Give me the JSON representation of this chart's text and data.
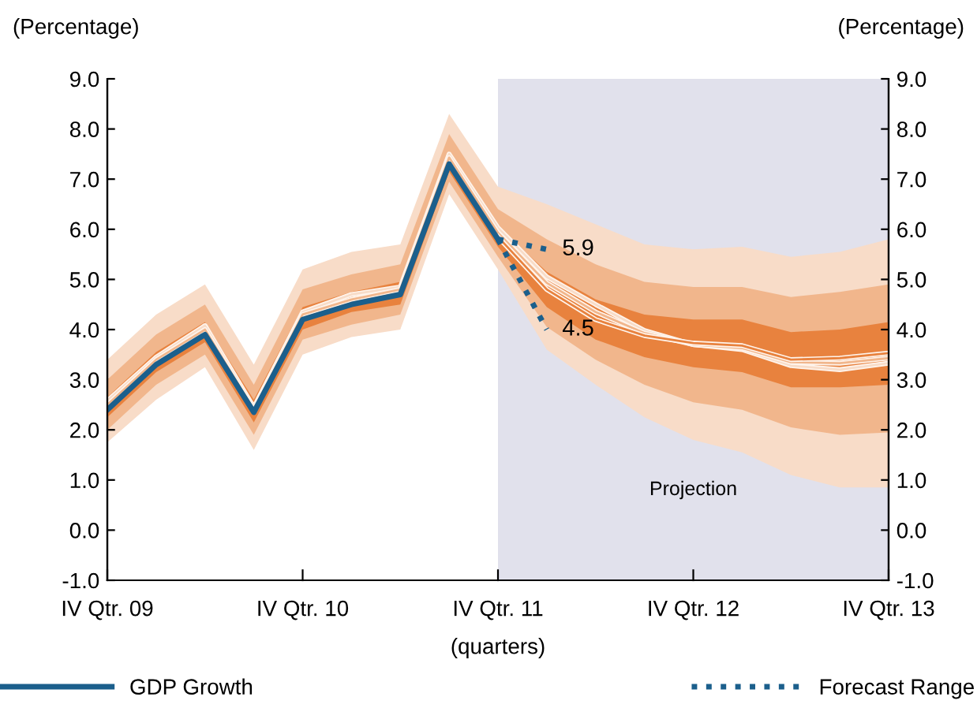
{
  "chart_data": {
    "type": "line",
    "xlabel": "(quarters)",
    "ylabel": "(Percentage)",
    "y2label": "(Percentage)",
    "categories": [
      "IV Qtr. 09",
      null,
      null,
      null,
      "IV Qtr. 10",
      null,
      null,
      null,
      "IV Qtr. 11",
      null,
      null,
      null,
      "IV Qtr. 12",
      null,
      null,
      null,
      "IV Qtr. 13"
    ],
    "ylim": [
      -1,
      9
    ],
    "y2lim": [
      -1,
      9
    ],
    "yticks": [
      {
        "value": -1,
        "label": "-1.0"
      },
      {
        "value": 0,
        "label": "0.0"
      },
      {
        "value": 1,
        "label": "1.0"
      },
      {
        "value": 2,
        "label": "2.0"
      },
      {
        "value": 3,
        "label": "3.0"
      },
      {
        "value": 4,
        "label": "4.0"
      },
      {
        "value": 5,
        "label": "5.0"
      },
      {
        "value": 6,
        "label": "6.0"
      },
      {
        "value": 7,
        "label": "7.0"
      },
      {
        "value": 8,
        "label": "8.0"
      },
      {
        "value": 9,
        "label": "9.0"
      }
    ],
    "y2ticks": [
      {
        "value": -1,
        "label": "-1.0"
      },
      {
        "value": 0,
        "label": "0.0"
      },
      {
        "value": 1,
        "label": "1.0"
      },
      {
        "value": 2,
        "label": "2.0"
      },
      {
        "value": 3,
        "label": "3.0"
      },
      {
        "value": 4,
        "label": "4.0"
      },
      {
        "value": 5,
        "label": "5.0"
      },
      {
        "value": 6,
        "label": "6.0"
      },
      {
        "value": 7,
        "label": "7.0"
      },
      {
        "value": 8,
        "label": "8.0"
      },
      {
        "value": 9,
        "label": "9.0"
      }
    ],
    "grid": false,
    "legend": "bottom",
    "bands": [
      {
        "axis": "x",
        "from": "IV Qtr. 11",
        "to": "IV Qtr. 13",
        "label": "Projection",
        "color": "#e1e1ec"
      }
    ],
    "series": [
      {
        "color": "#f8dcc8",
        "values": [
          2.58,
          3.45,
          4.08,
          2.45,
          4.35,
          4.7,
          4.85,
          7.5,
          6.03,
          5.05,
          4.5,
          3.98,
          3.7,
          3.6,
          3.28,
          3.2,
          3.33
        ],
        "lower": [
          1.75,
          2.6,
          3.25,
          1.6,
          3.5,
          3.85,
          4.0,
          6.7,
          5.2,
          3.6,
          2.9,
          2.25,
          1.8,
          1.55,
          1.1,
          0.85,
          0.85
        ],
        "upper": [
          3.4,
          4.3,
          4.9,
          3.3,
          5.2,
          5.55,
          5.7,
          8.3,
          6.85,
          6.5,
          6.1,
          5.7,
          5.6,
          5.65,
          5.45,
          5.55,
          5.8
        ]
      },
      {
        "color": "#f1b68c",
        "values": [
          2.5,
          3.4,
          4.0,
          2.4,
          4.3,
          4.6,
          4.8,
          7.43,
          5.93,
          4.93,
          4.35,
          3.93,
          3.7,
          3.63,
          3.35,
          3.33,
          3.43
        ],
        "lower": [
          2.0,
          2.9,
          3.5,
          1.9,
          3.8,
          4.1,
          4.3,
          6.95,
          5.45,
          4.05,
          3.4,
          2.9,
          2.55,
          2.4,
          2.05,
          1.9,
          1.95
        ],
        "upper": [
          3.0,
          3.9,
          4.5,
          2.9,
          4.8,
          5.1,
          5.3,
          7.9,
          6.4,
          5.8,
          5.3,
          4.95,
          4.85,
          4.85,
          4.65,
          4.75,
          4.9
        ]
      },
      {
        "color": "#e8823e",
        "values": [
          null,
          null,
          null,
          null,
          null,
          null,
          null,
          null,
          5.85,
          4.8,
          4.2,
          3.88,
          3.73,
          3.68,
          3.4,
          3.43,
          3.53
        ],
        "lower": [
          2.25,
          3.15,
          3.75,
          2.15,
          4.0,
          4.35,
          4.5,
          7.15,
          5.65,
          4.45,
          3.8,
          3.45,
          3.25,
          3.15,
          2.85,
          2.85,
          2.9
        ],
        "upper": [
          2.65,
          3.55,
          4.15,
          2.6,
          4.45,
          4.75,
          4.95,
          7.55,
          6.05,
          5.15,
          4.6,
          4.3,
          4.2,
          4.2,
          3.95,
          4.0,
          4.15
        ]
      },
      {
        "name": "GDP Growth",
        "color": "#1b5f8c",
        "line_style": "solid",
        "values": [
          2.4,
          3.3,
          3.9,
          2.35,
          4.2,
          4.5,
          4.7,
          7.3,
          5.8,
          null,
          null,
          null,
          null,
          null,
          null,
          null,
          null
        ]
      },
      {
        "name": "Forecast Range",
        "color": "#1b5f8c",
        "line_style": "dotted",
        "values": [
          null,
          null,
          null,
          null,
          null,
          null,
          null,
          null,
          5.8,
          5.6,
          null,
          null,
          null,
          null,
          null,
          null,
          null
        ]
      },
      {
        "color": "#1b5f8c",
        "line_style": "dotted",
        "values": [
          null,
          null,
          null,
          null,
          null,
          null,
          null,
          null,
          5.8,
          4.0,
          null,
          null,
          null,
          null,
          null,
          null,
          null
        ]
      }
    ],
    "annotations": [
      {
        "text": "5.9",
        "y": 5.6
      },
      {
        "text": "4.5",
        "y": 4.0
      }
    ]
  }
}
